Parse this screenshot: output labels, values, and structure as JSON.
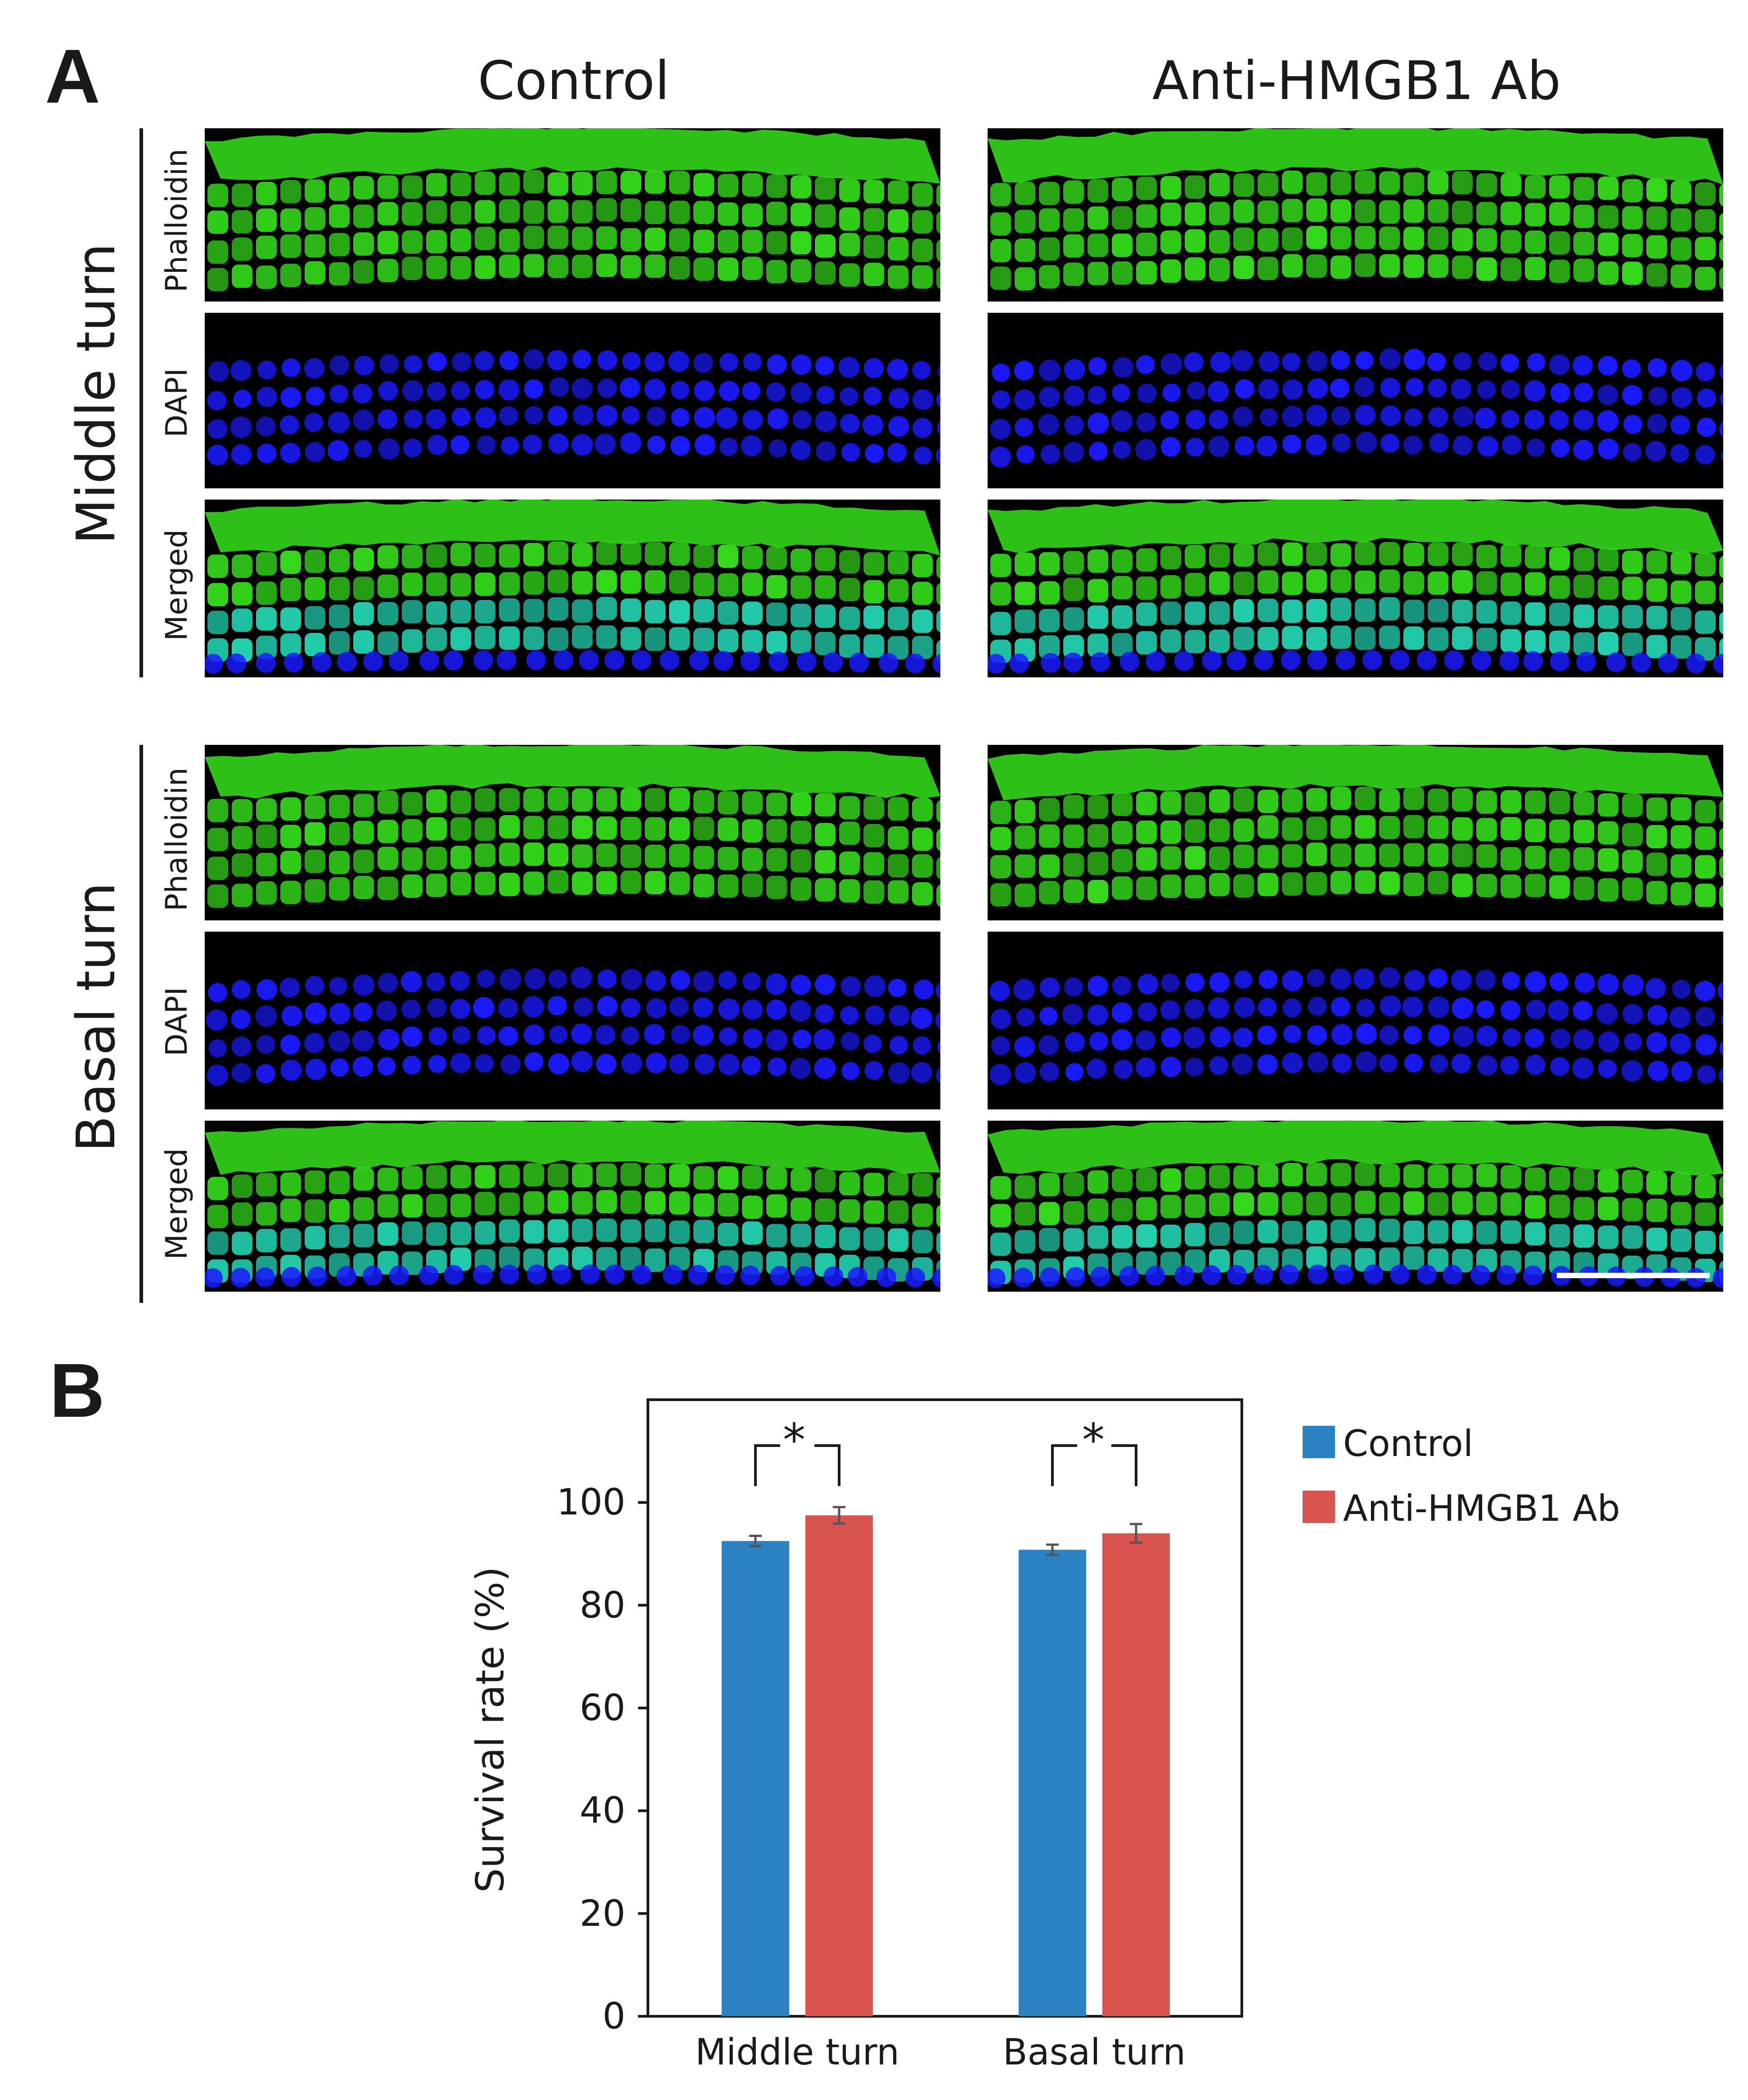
{
  "panel_a": {
    "letter": "A",
    "columns": [
      "Control",
      "Anti-HMGB1 Ab"
    ],
    "regions": [
      "Middle turn",
      "Basal turn"
    ],
    "stains": [
      "Phalloidin",
      "DAPI",
      "Merged"
    ]
  },
  "panel_b": {
    "letter": "B"
  },
  "colors": {
    "control": "#2a82c2",
    "antibody": "#d9534f",
    "phalloidin": "#33d61a",
    "dapi": "#1a1aff",
    "merged_overlap": "#22d0b0"
  },
  "chart_data": {
    "type": "bar",
    "categories": [
      "Middle turn",
      "Basal turn"
    ],
    "series": [
      {
        "name": "Control",
        "values": [
          92.5,
          90.8
        ],
        "errors": [
          1.0,
          1.0
        ]
      },
      {
        "name": "Anti-HMGB1 Ab",
        "values": [
          97.5,
          94.0
        ],
        "errors": [
          1.6,
          1.8
        ]
      }
    ],
    "ylabel": "Survival rate (%)",
    "ylim": [
      0,
      120
    ],
    "yticks": [
      0,
      20,
      40,
      60,
      80,
      100
    ],
    "significance": [
      "*",
      "*"
    ],
    "legend_position": "right",
    "grid": false
  }
}
